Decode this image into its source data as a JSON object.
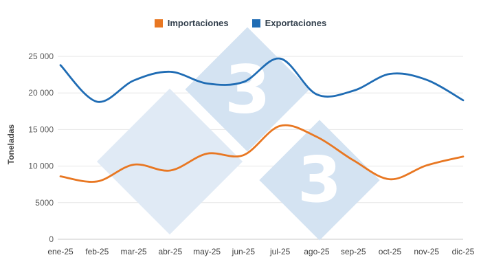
{
  "chart_data": {
    "type": "line",
    "title": "",
    "xlabel": "",
    "ylabel": "Toneladas",
    "categories": [
      "ene-25",
      "feb-25",
      "mar-25",
      "abr-25",
      "may-25",
      "jun-25",
      "jul-25",
      "ago-25",
      "sep-25",
      "oct-25",
      "nov-25",
      "dic-25"
    ],
    "series": [
      {
        "name": "Importaciones",
        "color": "#e87722",
        "values": [
          8600,
          7900,
          10200,
          9400,
          11700,
          11500,
          15500,
          14000,
          10800,
          8200,
          10100,
          11300
        ]
      },
      {
        "name": "Exportaciones",
        "color": "#1f6cb4",
        "values": [
          23800,
          18800,
          21700,
          22900,
          21300,
          21500,
          24700,
          19800,
          20300,
          22600,
          21800,
          19000
        ]
      }
    ],
    "ylim": [
      0,
      25000
    ],
    "yticks": [
      0,
      5000,
      10000,
      15000,
      20000,
      25000
    ],
    "ytick_labels": [
      "0",
      "5000",
      "10 000",
      "15 000",
      "20 000",
      "25 000"
    ],
    "grid": true,
    "legend_position": "top",
    "curve": "smooth"
  },
  "legend": {
    "items": [
      {
        "label": "Importaciones",
        "color": "#e87722"
      },
      {
        "label": "Exportaciones",
        "color": "#1f6cb4"
      }
    ]
  },
  "watermark": {
    "glyph": "3",
    "color": "#ffffff",
    "diamond_color": "#d4e3f2"
  }
}
